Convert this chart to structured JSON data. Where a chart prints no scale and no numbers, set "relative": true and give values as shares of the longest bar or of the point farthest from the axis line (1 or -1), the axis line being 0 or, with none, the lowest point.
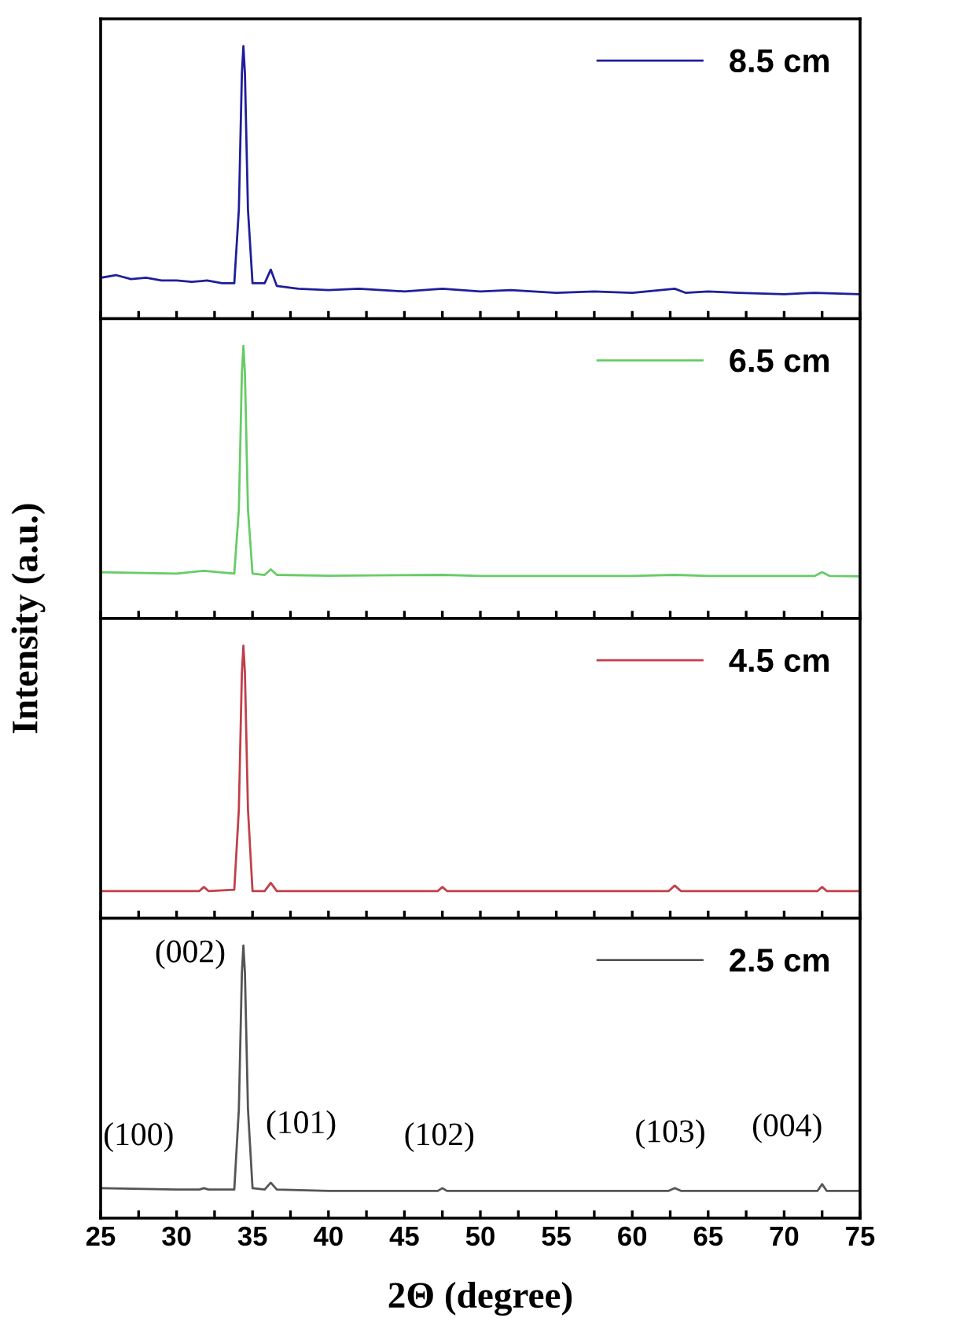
{
  "chart_data": [
    {
      "type": "line",
      "relative": true,
      "ylabel": "Intensity (a.u.)",
      "legend": "top right",
      "tick_labels": false,
      "line_style": "solid",
      "xlim": [
        25,
        75
      ],
      "xticks": [
        {
          "value": 25,
          "label": null
        },
        {
          "value": 27.5,
          "label": null
        },
        {
          "value": 30,
          "label": null
        },
        {
          "value": 32.5,
          "label": null
        },
        {
          "value": 35,
          "label": null
        },
        {
          "value": 37.5,
          "label": null
        },
        {
          "value": 40,
          "label": null
        },
        {
          "value": 42.5,
          "label": null
        },
        {
          "value": 45,
          "label": null
        },
        {
          "value": 47.5,
          "label": null
        },
        {
          "value": 50,
          "label": null
        },
        {
          "value": 52.5,
          "label": null
        },
        {
          "value": 55,
          "label": null
        },
        {
          "value": 57.5,
          "label": null
        },
        {
          "value": 60,
          "label": null
        },
        {
          "value": 62.5,
          "label": null
        },
        {
          "value": 65,
          "label": null
        },
        {
          "value": 67.5,
          "label": null
        },
        {
          "value": 70,
          "label": null
        },
        {
          "value": 72.5,
          "label": null
        },
        {
          "value": 75,
          "label": null
        }
      ],
      "series": [
        {
          "name": "8.5 cm",
          "color": "#1f1f9a",
          "x": [
            25,
            26,
            27,
            28,
            29,
            30,
            31,
            32,
            33,
            33.8,
            34.1,
            34.3,
            34.4,
            34.5,
            34.7,
            35,
            35.8,
            36.2,
            36.6,
            38,
            40,
            42,
            45,
            47.5,
            50,
            52,
            55,
            57.5,
            60,
            62.8,
            63.5,
            65,
            67,
            70,
            72,
            75
          ],
          "values": [
            0.15,
            0.16,
            0.145,
            0.15,
            0.14,
            0.14,
            0.135,
            0.14,
            0.13,
            0.13,
            0.4,
            0.9,
            1,
            0.9,
            0.4,
            0.13,
            0.13,
            0.18,
            0.12,
            0.11,
            0.105,
            0.11,
            0.1,
            0.11,
            0.1,
            0.105,
            0.095,
            0.1,
            0.095,
            0.11,
            0.095,
            0.1,
            0.095,
            0.09,
            0.095,
            0.09
          ]
        }
      ]
    },
    {
      "type": "line",
      "relative": true,
      "legend": "top right",
      "tick_labels": false,
      "line_style": "solid",
      "xlim": [
        25,
        75
      ],
      "xticks": [
        {
          "value": 25,
          "label": null
        },
        {
          "value": 27.5,
          "label": null
        },
        {
          "value": 30,
          "label": null
        },
        {
          "value": 32.5,
          "label": null
        },
        {
          "value": 35,
          "label": null
        },
        {
          "value": 37.5,
          "label": null
        },
        {
          "value": 40,
          "label": null
        },
        {
          "value": 42.5,
          "label": null
        },
        {
          "value": 45,
          "label": null
        },
        {
          "value": 47.5,
          "label": null
        },
        {
          "value": 50,
          "label": null
        },
        {
          "value": 52.5,
          "label": null
        },
        {
          "value": 55,
          "label": null
        },
        {
          "value": 57.5,
          "label": null
        },
        {
          "value": 60,
          "label": null
        },
        {
          "value": 62.5,
          "label": null
        },
        {
          "value": 65,
          "label": null
        },
        {
          "value": 67.5,
          "label": null
        },
        {
          "value": 70,
          "label": null
        },
        {
          "value": 72.5,
          "label": null
        },
        {
          "value": 75,
          "label": null
        }
      ],
      "series": [
        {
          "name": "6.5 cm",
          "color": "#66cc66",
          "x": [
            25,
            30,
            31.8,
            33.8,
            34.1,
            34.3,
            34.4,
            34.5,
            34.7,
            35,
            35.8,
            36.2,
            36.6,
            40,
            47.5,
            50,
            60,
            62.8,
            65,
            72,
            72.5,
            73,
            75
          ],
          "values": [
            0.17,
            0.165,
            0.175,
            0.165,
            0.4,
            0.9,
            1,
            0.9,
            0.4,
            0.165,
            0.16,
            0.18,
            0.16,
            0.157,
            0.16,
            0.156,
            0.156,
            0.16,
            0.156,
            0.156,
            0.17,
            0.156,
            0.155
          ]
        }
      ]
    },
    {
      "type": "line",
      "relative": true,
      "legend": "top right",
      "tick_labels": false,
      "line_style": "solid",
      "xlim": [
        25,
        75
      ],
      "xticks": [
        {
          "value": 25,
          "label": null
        },
        {
          "value": 27.5,
          "label": null
        },
        {
          "value": 30,
          "label": null
        },
        {
          "value": 32.5,
          "label": null
        },
        {
          "value": 35,
          "label": null
        },
        {
          "value": 37.5,
          "label": null
        },
        {
          "value": 40,
          "label": null
        },
        {
          "value": 42.5,
          "label": null
        },
        {
          "value": 45,
          "label": null
        },
        {
          "value": 47.5,
          "label": null
        },
        {
          "value": 50,
          "label": null
        },
        {
          "value": 52.5,
          "label": null
        },
        {
          "value": 55,
          "label": null
        },
        {
          "value": 57.5,
          "label": null
        },
        {
          "value": 60,
          "label": null
        },
        {
          "value": 62.5,
          "label": null
        },
        {
          "value": 65,
          "label": null
        },
        {
          "value": 67.5,
          "label": null
        },
        {
          "value": 70,
          "label": null
        },
        {
          "value": 72.5,
          "label": null
        },
        {
          "value": 75,
          "label": null
        }
      ],
      "series": [
        {
          "name": "4.5 cm",
          "color": "#c0404a",
          "x": [
            25,
            30,
            31.5,
            31.8,
            32.1,
            33.8,
            34.1,
            34.3,
            34.4,
            34.5,
            34.7,
            35,
            35.8,
            36.2,
            36.6,
            40,
            47.2,
            47.5,
            47.8,
            55,
            62.4,
            62.8,
            63.2,
            68,
            72.2,
            72.5,
            72.8,
            75
          ],
          "values": [
            0.1,
            0.1,
            0.1,
            0.115,
            0.1,
            0.105,
            0.4,
            0.9,
            1,
            0.9,
            0.4,
            0.1,
            0.1,
            0.13,
            0.1,
            0.1,
            0.1,
            0.115,
            0.1,
            0.1,
            0.1,
            0.12,
            0.1,
            0.1,
            0.1,
            0.115,
            0.1,
            0.1
          ]
        }
      ]
    },
    {
      "type": "line",
      "relative": true,
      "xlabel": "2Θ (degree)",
      "legend": "top right",
      "tick_labels": "x",
      "line_style": "solid",
      "xlim": [
        25,
        75
      ],
      "xticks": [
        25,
        {
          "value": 27.5,
          "label": null
        },
        30,
        {
          "value": 32.5,
          "label": null
        },
        35,
        {
          "value": 37.5,
          "label": null
        },
        40,
        {
          "value": 42.5,
          "label": null
        },
        45,
        {
          "value": 47.5,
          "label": null
        },
        50,
        {
          "value": 52.5,
          "label": null
        },
        55,
        {
          "value": 57.5,
          "label": null
        },
        60,
        {
          "value": 62.5,
          "label": null
        },
        65,
        {
          "value": 67.5,
          "label": null
        },
        70,
        {
          "value": 72.5,
          "label": null
        },
        75
      ],
      "annotations": [
        "(100)",
        "(002)",
        "(101)",
        "(102)",
        "(103)",
        "(004)"
      ],
      "series": [
        {
          "name": "2.5 cm",
          "color": "#555555",
          "x": [
            25,
            30,
            31.5,
            31.8,
            32.1,
            33.8,
            34.1,
            34.3,
            34.4,
            34.5,
            34.7,
            35,
            35.8,
            36.2,
            36.6,
            40,
            47.2,
            47.5,
            47.8,
            55,
            62.4,
            62.8,
            63.2,
            68,
            72.2,
            72.5,
            72.8,
            75
          ],
          "values": [
            0.11,
            0.105,
            0.105,
            0.11,
            0.105,
            0.105,
            0.4,
            0.9,
            1,
            0.9,
            0.4,
            0.11,
            0.105,
            0.13,
            0.105,
            0.1,
            0.1,
            0.11,
            0.1,
            0.1,
            0.1,
            0.11,
            0.1,
            0.1,
            0.1,
            0.125,
            0.1,
            0.1
          ]
        }
      ]
    }
  ]
}
